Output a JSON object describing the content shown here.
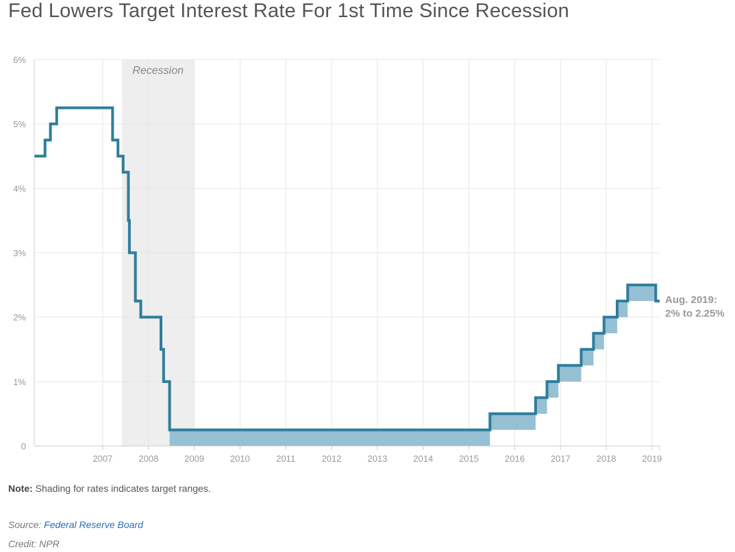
{
  "title": "Fed Lowers Target Interest Rate For 1st Time Since Recession",
  "note": {
    "label": "Note:",
    "text": " Shading for rates indicates target ranges."
  },
  "source": {
    "label": "Source: ",
    "link_text": "Federal Reserve Board"
  },
  "credit": "Credit: NPR",
  "colors": {
    "line": "#2e7d9c",
    "band": "#96c0d3",
    "recession": "#eeeeee",
    "grid": "#e6e6e6",
    "annotation": "#999999"
  },
  "chart_data": {
    "type": "line",
    "title": "Fed Lowers Target Interest Rate For 1st Time Since Recession",
    "xlabel": "",
    "ylabel": "",
    "x_ticks": [
      "2007",
      "2008",
      "2009",
      "2010",
      "2011",
      "2012",
      "2013",
      "2014",
      "2015",
      "2016",
      "2017",
      "2018",
      "2019"
    ],
    "y_ticks": [
      "0",
      "1%",
      "2%",
      "3%",
      "4%",
      "5%",
      "6%"
    ],
    "xlim": [
      "2006-01-01",
      "2019-08-31"
    ],
    "ylim": [
      0,
      6
    ],
    "grid": true,
    "recession": {
      "label": "Recession",
      "start": "2007-12-01",
      "end": "2009-06-30"
    },
    "annotation": {
      "lines": [
        "Aug. 2019:",
        "2% to 2.25%"
      ]
    },
    "target_rate": [
      {
        "date": "2006-01-01",
        "value": 4.5
      },
      {
        "date": "2006-01-31",
        "value": 4.5
      },
      {
        "date": "2006-03-28",
        "value": 4.75
      },
      {
        "date": "2006-05-10",
        "value": 5.0
      },
      {
        "date": "2006-06-29",
        "value": 5.25
      },
      {
        "date": "2007-09-18",
        "value": 4.75
      },
      {
        "date": "2007-10-31",
        "value": 4.5
      },
      {
        "date": "2007-12-11",
        "value": 4.25
      },
      {
        "date": "2008-01-22",
        "value": 3.5
      },
      {
        "date": "2008-01-30",
        "value": 3.0
      },
      {
        "date": "2008-03-18",
        "value": 2.25
      },
      {
        "date": "2008-04-30",
        "value": 2.0
      },
      {
        "date": "2008-10-08",
        "value": 1.5
      },
      {
        "date": "2008-10-29",
        "value": 1.0
      },
      {
        "date": "2008-12-16",
        "value": 0.25
      },
      {
        "date": "2015-12-16",
        "value": 0.5
      },
      {
        "date": "2016-12-14",
        "value": 0.75
      },
      {
        "date": "2017-03-15",
        "value": 1.0
      },
      {
        "date": "2017-06-14",
        "value": 1.25
      },
      {
        "date": "2017-12-13",
        "value": 1.5
      },
      {
        "date": "2018-03-21",
        "value": 1.75
      },
      {
        "date": "2018-06-13",
        "value": 2.0
      },
      {
        "date": "2018-09-26",
        "value": 2.25
      },
      {
        "date": "2018-12-19",
        "value": 2.5
      },
      {
        "date": "2019-07-31",
        "value": 2.25
      }
    ],
    "target_range": [
      {
        "start": "2008-12-16",
        "end": "2015-12-16",
        "low": 0.0,
        "high": 0.25
      },
      {
        "start": "2015-12-16",
        "end": "2016-12-14",
        "low": 0.25,
        "high": 0.5
      },
      {
        "start": "2016-12-14",
        "end": "2017-03-15",
        "low": 0.5,
        "high": 0.75
      },
      {
        "start": "2017-03-15",
        "end": "2017-06-14",
        "low": 0.75,
        "high": 1.0
      },
      {
        "start": "2017-06-14",
        "end": "2017-12-13",
        "low": 1.0,
        "high": 1.25
      },
      {
        "start": "2017-12-13",
        "end": "2018-03-21",
        "low": 1.25,
        "high": 1.5
      },
      {
        "start": "2018-03-21",
        "end": "2018-06-13",
        "low": 1.5,
        "high": 1.75
      },
      {
        "start": "2018-06-13",
        "end": "2018-09-26",
        "low": 1.75,
        "high": 2.0
      },
      {
        "start": "2018-09-26",
        "end": "2018-12-19",
        "low": 2.0,
        "high": 2.25
      },
      {
        "start": "2018-12-19",
        "end": "2019-07-31",
        "low": 2.25,
        "high": 2.5
      }
    ]
  }
}
